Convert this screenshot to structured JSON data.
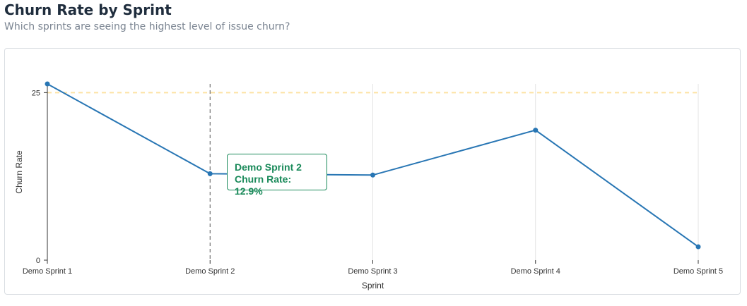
{
  "header": {
    "title": "Churn Rate by Sprint",
    "subtitle": "Which sprints are seeing the highest level of issue churn?"
  },
  "colors": {
    "line": "#2876b4",
    "threshold": "#fde3a3",
    "grid": "#e3e3e3",
    "cursor": "#555555",
    "tooltip": "#1a8a5a"
  },
  "chart_data": {
    "type": "line",
    "categories": [
      "Demo Sprint 1",
      "Demo Sprint 2",
      "Demo Sprint 3",
      "Demo Sprint 4",
      "Demo Sprint 5"
    ],
    "series": [
      {
        "values": [
          26.3,
          12.9,
          12.7,
          19.4,
          2.0
        ]
      }
    ],
    "threshold": 25,
    "xlabel": "Sprint",
    "ylabel": "Churn Rate",
    "yticks": [
      "0",
      "25"
    ],
    "ylim": [
      0,
      26.3
    ],
    "grid": "vertical",
    "hover_index": 1,
    "tooltip": {
      "title": "Demo Sprint 2",
      "value": "Churn Rate: 12.9%"
    }
  }
}
